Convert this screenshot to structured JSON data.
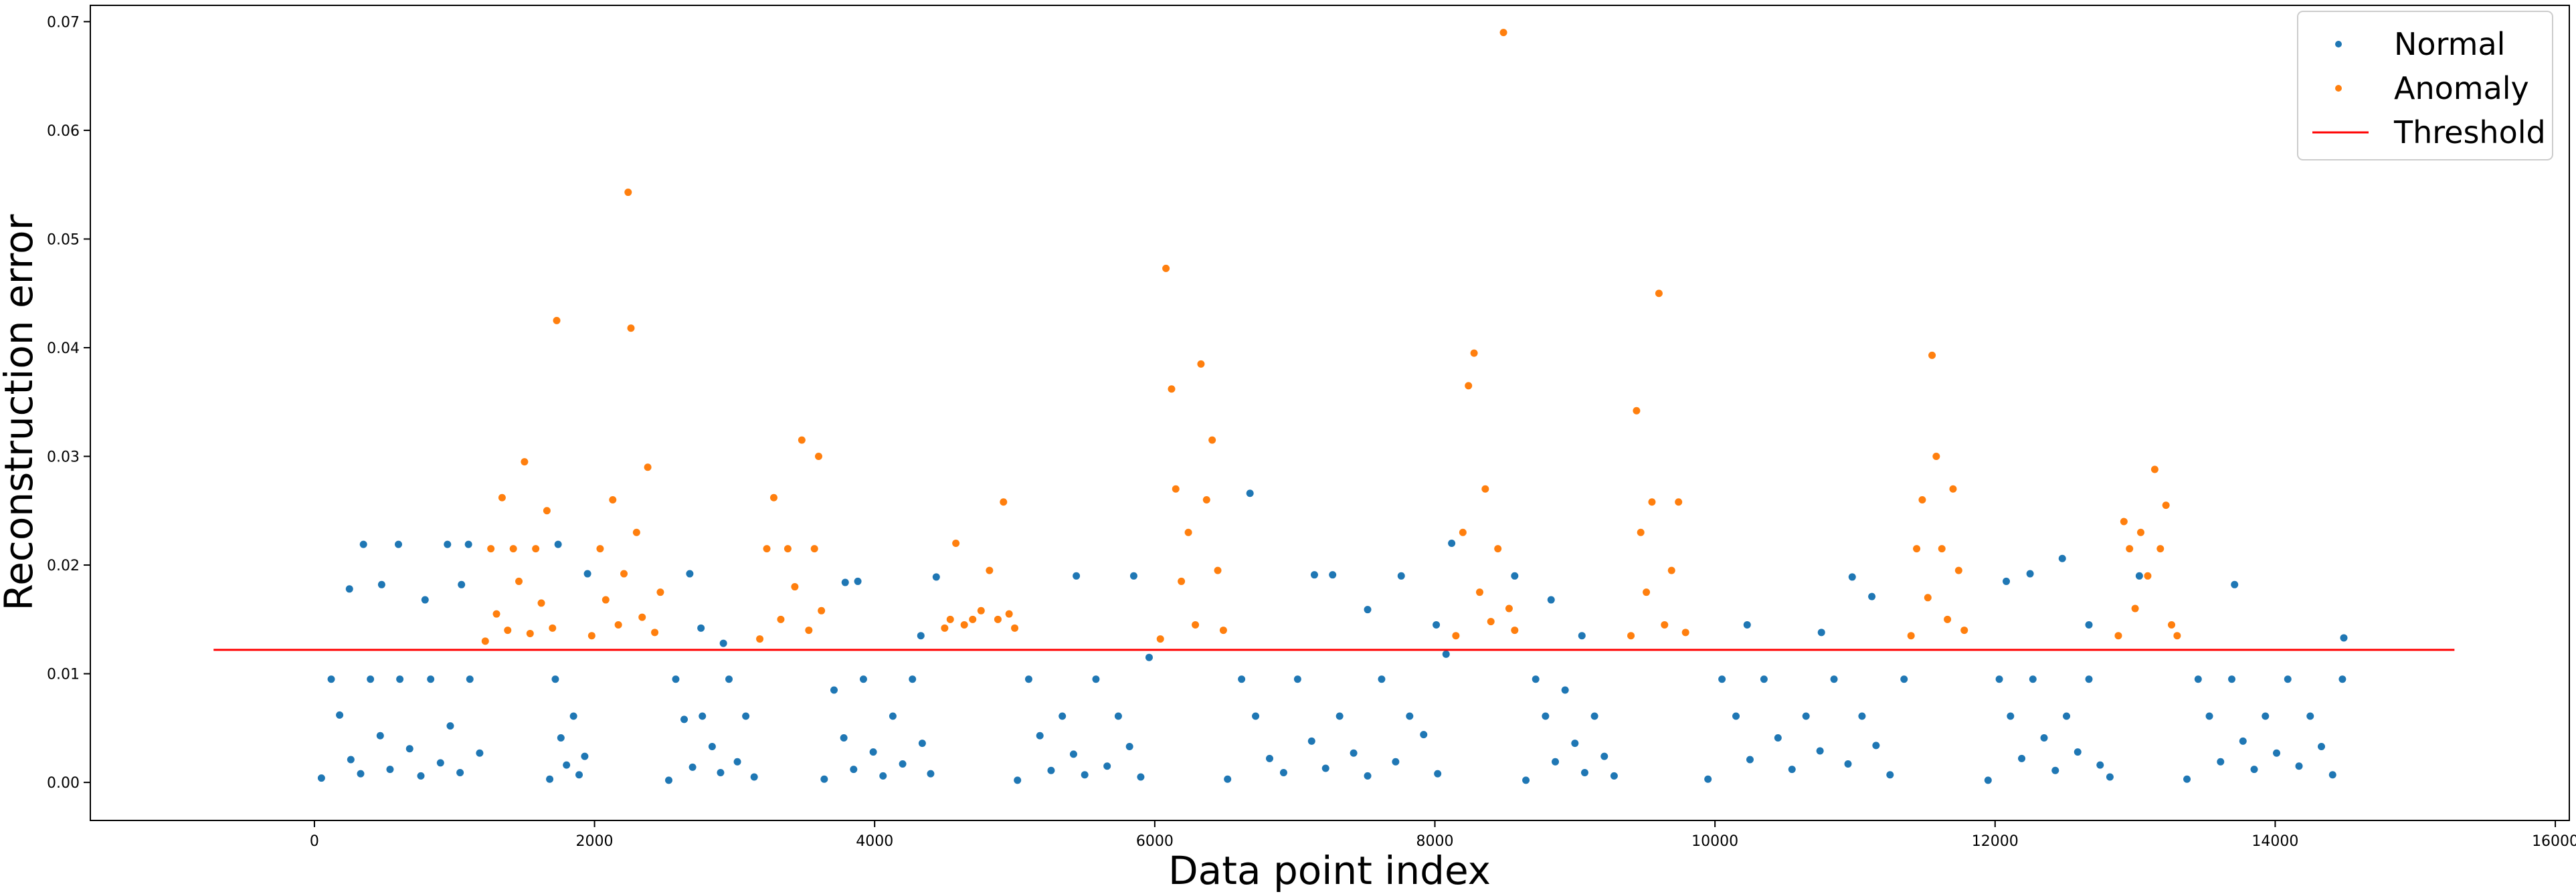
{
  "chart_data": {
    "type": "scatter",
    "title": "",
    "xlabel": "Data point index",
    "ylabel": "Reconstruction error",
    "xlim": [
      -1600,
      16100
    ],
    "ylim": [
      -0.0035,
      0.0715
    ],
    "xticks": [
      0,
      2000,
      4000,
      6000,
      8000,
      10000,
      12000,
      14000,
      16000
    ],
    "xtick_labels": [
      "0",
      "2000",
      "4000",
      "6000",
      "8000",
      "10000",
      "12000",
      "14000",
      "16000"
    ],
    "yticks": [
      0.0,
      0.01,
      0.02,
      0.03,
      0.04,
      0.05,
      0.06,
      0.07
    ],
    "ytick_labels": [
      "0.00",
      "0.01",
      "0.02",
      "0.03",
      "0.04",
      "0.05",
      "0.06",
      "0.07"
    ],
    "grid": false,
    "legend_position": "top-right",
    "series": [
      {
        "name": "Normal",
        "color": "#1f77b4",
        "points": [
          [
            50,
            0.0004
          ],
          [
            120,
            0.0095
          ],
          [
            180,
            0.0062
          ],
          [
            260,
            0.0021
          ],
          [
            330,
            0.0008
          ],
          [
            400,
            0.0095
          ],
          [
            470,
            0.0043
          ],
          [
            540,
            0.0012
          ],
          [
            610,
            0.0095
          ],
          [
            680,
            0.0031
          ],
          [
            760,
            0.0006
          ],
          [
            830,
            0.0095
          ],
          [
            900,
            0.0018
          ],
          [
            970,
            0.0052
          ],
          [
            1040,
            0.0009
          ],
          [
            1110,
            0.0095
          ],
          [
            1180,
            0.0027
          ],
          [
            1680,
            0.0003
          ],
          [
            1720,
            0.0095
          ],
          [
            1760,
            0.0041
          ],
          [
            1800,
            0.0016
          ],
          [
            1850,
            0.0061
          ],
          [
            1890,
            0.0007
          ],
          [
            1930,
            0.0024
          ],
          [
            2530,
            0.0002
          ],
          [
            2580,
            0.0095
          ],
          [
            2640,
            0.0058
          ],
          [
            2700,
            0.0014
          ],
          [
            2770,
            0.0061
          ],
          [
            2840,
            0.0033
          ],
          [
            2900,
            0.0009
          ],
          [
            2960,
            0.0095
          ],
          [
            3020,
            0.0019
          ],
          [
            3080,
            0.0061
          ],
          [
            3140,
            0.0005
          ],
          [
            3640,
            0.0003
          ],
          [
            3710,
            0.0085
          ],
          [
            3780,
            0.0041
          ],
          [
            3850,
            0.0012
          ],
          [
            3920,
            0.0095
          ],
          [
            3990,
            0.0028
          ],
          [
            4060,
            0.0006
          ],
          [
            4130,
            0.0061
          ],
          [
            4200,
            0.0017
          ],
          [
            4270,
            0.0095
          ],
          [
            4340,
            0.0036
          ],
          [
            4400,
            0.0008
          ],
          [
            5020,
            0.0002
          ],
          [
            5100,
            0.0095
          ],
          [
            5180,
            0.0043
          ],
          [
            5260,
            0.0011
          ],
          [
            5340,
            0.0061
          ],
          [
            5420,
            0.0026
          ],
          [
            5500,
            0.0007
          ],
          [
            5580,
            0.0095
          ],
          [
            5660,
            0.0015
          ],
          [
            5740,
            0.0061
          ],
          [
            5820,
            0.0033
          ],
          [
            5900,
            0.0005
          ],
          [
            5960,
            0.0115
          ],
          [
            6520,
            0.0003
          ],
          [
            6620,
            0.0095
          ],
          [
            6720,
            0.0061
          ],
          [
            6820,
            0.0022
          ],
          [
            6920,
            0.0009
          ],
          [
            7020,
            0.0095
          ],
          [
            7120,
            0.0038
          ],
          [
            7220,
            0.0013
          ],
          [
            7320,
            0.0061
          ],
          [
            7420,
            0.0027
          ],
          [
            7520,
            0.0006
          ],
          [
            7620,
            0.0095
          ],
          [
            7720,
            0.0019
          ],
          [
            7820,
            0.0061
          ],
          [
            7920,
            0.0044
          ],
          [
            8020,
            0.0008
          ],
          [
            8080,
            0.0118
          ],
          [
            8650,
            0.0002
          ],
          [
            8720,
            0.0095
          ],
          [
            8790,
            0.0061
          ],
          [
            8860,
            0.0019
          ],
          [
            8930,
            0.0085
          ],
          [
            9000,
            0.0036
          ],
          [
            9070,
            0.0009
          ],
          [
            9140,
            0.0061
          ],
          [
            9210,
            0.0024
          ],
          [
            9280,
            0.0006
          ],
          [
            9950,
            0.0003
          ],
          [
            10050,
            0.0095
          ],
          [
            10150,
            0.0061
          ],
          [
            10250,
            0.0021
          ],
          [
            10350,
            0.0095
          ],
          [
            10450,
            0.0041
          ],
          [
            10550,
            0.0012
          ],
          [
            10650,
            0.0061
          ],
          [
            10750,
            0.0029
          ],
          [
            10850,
            0.0095
          ],
          [
            10950,
            0.0017
          ],
          [
            11050,
            0.0061
          ],
          [
            11150,
            0.0034
          ],
          [
            11250,
            0.0007
          ],
          [
            11350,
            0.0095
          ],
          [
            11950,
            0.0002
          ],
          [
            12030,
            0.0095
          ],
          [
            12110,
            0.0061
          ],
          [
            12190,
            0.0022
          ],
          [
            12270,
            0.0095
          ],
          [
            12350,
            0.0041
          ],
          [
            12430,
            0.0011
          ],
          [
            12510,
            0.0061
          ],
          [
            12590,
            0.0028
          ],
          [
            12670,
            0.0095
          ],
          [
            12750,
            0.0016
          ],
          [
            12820,
            0.0005
          ],
          [
            13370,
            0.0003
          ],
          [
            13450,
            0.0095
          ],
          [
            13530,
            0.0061
          ],
          [
            13610,
            0.0019
          ],
          [
            13690,
            0.0095
          ],
          [
            13770,
            0.0038
          ],
          [
            13850,
            0.0012
          ],
          [
            13930,
            0.0061
          ],
          [
            14010,
            0.0027
          ],
          [
            14090,
            0.0095
          ],
          [
            14170,
            0.0015
          ],
          [
            14250,
            0.0061
          ],
          [
            14330,
            0.0033
          ],
          [
            14410,
            0.0007
          ],
          [
            14480,
            0.0095
          ],
          [
            250,
            0.0178
          ],
          [
            350,
            0.0219
          ],
          [
            480,
            0.0182
          ],
          [
            600,
            0.0219
          ],
          [
            790,
            0.0168
          ],
          [
            950,
            0.0219
          ],
          [
            1050,
            0.0182
          ],
          [
            1100,
            0.0219
          ],
          [
            1740,
            0.0219
          ],
          [
            1950,
            0.0192
          ],
          [
            2680,
            0.0192
          ],
          [
            2760,
            0.0142
          ],
          [
            2920,
            0.0128
          ],
          [
            3790,
            0.0184
          ],
          [
            3880,
            0.0185
          ],
          [
            4330,
            0.0135
          ],
          [
            4440,
            0.0189
          ],
          [
            5440,
            0.019
          ],
          [
            5850,
            0.019
          ],
          [
            6680,
            0.0266
          ],
          [
            7140,
            0.0191
          ],
          [
            7270,
            0.0191
          ],
          [
            7520,
            0.0159
          ],
          [
            7760,
            0.019
          ],
          [
            8010,
            0.0145
          ],
          [
            8120,
            0.022
          ],
          [
            8570,
            0.019
          ],
          [
            8830,
            0.0168
          ],
          [
            9050,
            0.0135
          ],
          [
            10230,
            0.0145
          ],
          [
            10760,
            0.0138
          ],
          [
            10980,
            0.0189
          ],
          [
            11120,
            0.0171
          ],
          [
            12080,
            0.0185
          ],
          [
            12250,
            0.0192
          ],
          [
            12480,
            0.0206
          ],
          [
            12670,
            0.0145
          ],
          [
            13030,
            0.019
          ],
          [
            13710,
            0.0182
          ],
          [
            14490,
            0.0133
          ]
        ]
      },
      {
        "name": "Anomaly",
        "color": "#ff7f0e",
        "points": [
          [
            1220,
            0.013
          ],
          [
            1260,
            0.0215
          ],
          [
            1300,
            0.0155
          ],
          [
            1340,
            0.0262
          ],
          [
            1380,
            0.014
          ],
          [
            1420,
            0.0215
          ],
          [
            1460,
            0.0185
          ],
          [
            1500,
            0.0295
          ],
          [
            1540,
            0.0137
          ],
          [
            1580,
            0.0215
          ],
          [
            1620,
            0.0165
          ],
          [
            1660,
            0.025
          ],
          [
            1700,
            0.0142
          ],
          [
            1730,
            0.0425
          ],
          [
            1980,
            0.0135
          ],
          [
            2040,
            0.0215
          ],
          [
            2080,
            0.0168
          ],
          [
            2130,
            0.026
          ],
          [
            2170,
            0.0145
          ],
          [
            2210,
            0.0192
          ],
          [
            2240,
            0.0543
          ],
          [
            2260,
            0.0418
          ],
          [
            2300,
            0.023
          ],
          [
            2340,
            0.0152
          ],
          [
            2380,
            0.029
          ],
          [
            2430,
            0.0138
          ],
          [
            2470,
            0.0175
          ],
          [
            3180,
            0.0132
          ],
          [
            3230,
            0.0215
          ],
          [
            3280,
            0.0262
          ],
          [
            3330,
            0.015
          ],
          [
            3380,
            0.0215
          ],
          [
            3430,
            0.018
          ],
          [
            3480,
            0.0315
          ],
          [
            3530,
            0.014
          ],
          [
            3570,
            0.0215
          ],
          [
            3600,
            0.03
          ],
          [
            3620,
            0.0158
          ],
          [
            4500,
            0.0142
          ],
          [
            4540,
            0.015
          ],
          [
            4580,
            0.022
          ],
          [
            4640,
            0.0145
          ],
          [
            4700,
            0.015
          ],
          [
            4760,
            0.0158
          ],
          [
            4820,
            0.0195
          ],
          [
            4880,
            0.015
          ],
          [
            4920,
            0.0258
          ],
          [
            4960,
            0.0155
          ],
          [
            5000,
            0.0142
          ],
          [
            6040,
            0.0132
          ],
          [
            6080,
            0.0473
          ],
          [
            6120,
            0.0362
          ],
          [
            6150,
            0.027
          ],
          [
            6190,
            0.0185
          ],
          [
            6240,
            0.023
          ],
          [
            6290,
            0.0145
          ],
          [
            6330,
            0.0385
          ],
          [
            6370,
            0.026
          ],
          [
            6410,
            0.0315
          ],
          [
            6450,
            0.0195
          ],
          [
            6490,
            0.014
          ],
          [
            8150,
            0.0135
          ],
          [
            8200,
            0.023
          ],
          [
            8240,
            0.0365
          ],
          [
            8280,
            0.0395
          ],
          [
            8320,
            0.0175
          ],
          [
            8360,
            0.027
          ],
          [
            8400,
            0.0148
          ],
          [
            8450,
            0.0215
          ],
          [
            8490,
            0.069
          ],
          [
            8530,
            0.016
          ],
          [
            8570,
            0.014
          ],
          [
            9400,
            0.0135
          ],
          [
            9440,
            0.0342
          ],
          [
            9470,
            0.023
          ],
          [
            9510,
            0.0175
          ],
          [
            9550,
            0.0258
          ],
          [
            9600,
            0.045
          ],
          [
            9640,
            0.0145
          ],
          [
            9690,
            0.0195
          ],
          [
            9740,
            0.0258
          ],
          [
            9790,
            0.0138
          ],
          [
            11400,
            0.0135
          ],
          [
            11440,
            0.0215
          ],
          [
            11480,
            0.026
          ],
          [
            11520,
            0.017
          ],
          [
            11550,
            0.0393
          ],
          [
            11580,
            0.03
          ],
          [
            11620,
            0.0215
          ],
          [
            11660,
            0.015
          ],
          [
            11700,
            0.027
          ],
          [
            11740,
            0.0195
          ],
          [
            11780,
            0.014
          ],
          [
            12880,
            0.0135
          ],
          [
            12920,
            0.024
          ],
          [
            12960,
            0.0215
          ],
          [
            13000,
            0.016
          ],
          [
            13040,
            0.023
          ],
          [
            13090,
            0.019
          ],
          [
            13140,
            0.0288
          ],
          [
            13180,
            0.0215
          ],
          [
            13220,
            0.0255
          ],
          [
            13260,
            0.0145
          ],
          [
            13300,
            0.0135
          ]
        ]
      },
      {
        "name": "Threshold",
        "color": "#ff0000",
        "line": true,
        "x": [
          -720,
          15280
        ],
        "y": [
          0.0122,
          0.0122
        ]
      }
    ]
  }
}
